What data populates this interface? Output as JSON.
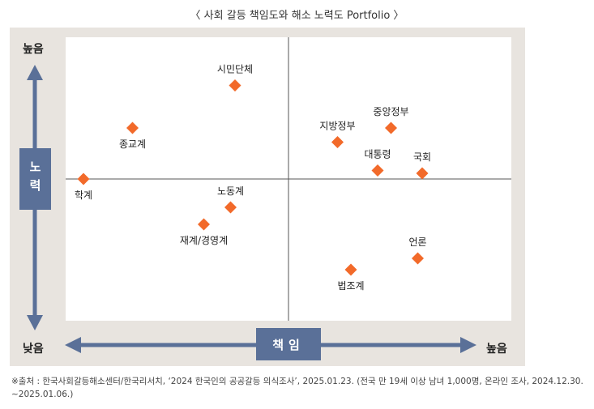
{
  "header": {
    "title": "〈 사회 갈등 책임도와 해소 노력도 Portfolio 〉"
  },
  "axes": {
    "y_high": "높음",
    "y_low": "낮음",
    "y_title": "노력",
    "x_title": "책임",
    "x_low": "낮음",
    "x_high": "높음"
  },
  "colors": {
    "marker": "#f26a2a",
    "axis_box": "#5a7098",
    "frame": "#e8e4df",
    "divider": "#555555"
  },
  "chart_data": {
    "type": "scatter",
    "title": "사회 갈등 책임도와 해소 노력도 Portfolio",
    "xlabel": "책임",
    "ylabel": "노력",
    "xlim": [
      0,
      100
    ],
    "ylim": [
      0,
      100
    ],
    "quadrant_split": {
      "x": 50,
      "y": 50
    },
    "grid": false,
    "points": [
      {
        "label": "시민단체",
        "x": 38,
        "y": 83,
        "label_pos": "above"
      },
      {
        "label": "종교계",
        "x": 15,
        "y": 68,
        "label_pos": "below"
      },
      {
        "label": "학계",
        "x": 4,
        "y": 50,
        "label_pos": "below"
      },
      {
        "label": "노동계",
        "x": 37,
        "y": 40,
        "label_pos": "above"
      },
      {
        "label": "재계/경영계",
        "x": 31,
        "y": 34,
        "label_pos": "below"
      },
      {
        "label": "중앙정부",
        "x": 73,
        "y": 68,
        "label_pos": "above"
      },
      {
        "label": "지방정부",
        "x": 61,
        "y": 63,
        "label_pos": "above"
      },
      {
        "label": "대통령",
        "x": 70,
        "y": 53,
        "label_pos": "above"
      },
      {
        "label": "국회",
        "x": 80,
        "y": 52,
        "label_pos": "above"
      },
      {
        "label": "언론",
        "x": 79,
        "y": 22,
        "label_pos": "above"
      },
      {
        "label": "법조계",
        "x": 64,
        "y": 18,
        "label_pos": "below"
      }
    ]
  },
  "footnote": "※출처 : 한국사회갈등해소센터/한국리서치, ‘2024 한국인의 공공갈등 의식조사’, 2025.01.23. (전국 만 19세 이상 남녀 1,000명, 온라인 조사, 2024.12.30. ~2025.01.06.)"
}
